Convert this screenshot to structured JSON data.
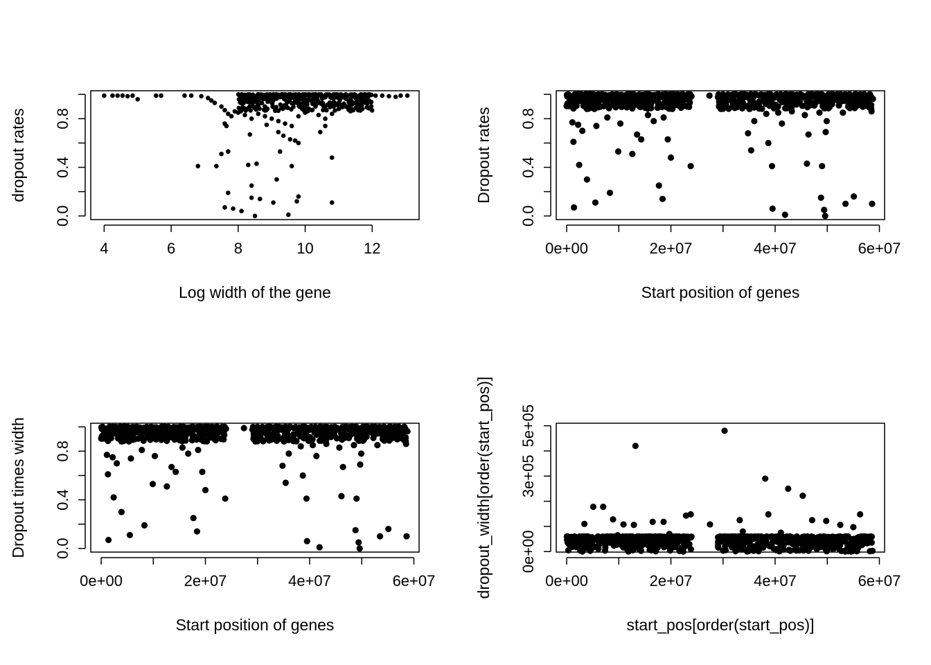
{
  "chart_data": [
    {
      "id": "p1",
      "type": "scatter",
      "title": "",
      "xlabel": "Log width of the gene",
      "ylabel": "dropout rates",
      "xlim": [
        3.6,
        13.4
      ],
      "ylim": [
        -0.03,
        1.03
      ],
      "xticks": [
        4,
        6,
        8,
        10,
        12
      ],
      "xtick_labels": [
        "4",
        "6",
        "8",
        "10",
        "12"
      ],
      "yticks": [
        0,
        0.2,
        0.4,
        0.6,
        0.8,
        1.0
      ],
      "ytick_labels": [
        "0.0",
        "",
        "0.4",
        "",
        "0.8",
        ""
      ],
      "grid": false,
      "legend": "none",
      "points": [
        [
          4.0,
          0.99
        ],
        [
          4.25,
          0.99
        ],
        [
          4.4,
          0.99
        ],
        [
          4.55,
          0.99
        ],
        [
          4.7,
          0.985
        ],
        [
          4.85,
          0.99
        ],
        [
          5.0,
          0.96
        ],
        [
          5.55,
          0.99
        ],
        [
          5.7,
          0.99
        ],
        [
          6.4,
          0.99
        ],
        [
          6.6,
          0.99
        ],
        [
          6.9,
          0.985
        ],
        [
          7.1,
          0.97
        ],
        [
          7.2,
          0.95
        ],
        [
          7.3,
          0.93
        ],
        [
          7.5,
          0.9
        ],
        [
          7.6,
          0.87
        ],
        [
          7.7,
          0.84
        ],
        [
          7.8,
          0.82
        ],
        [
          7.9,
          0.86
        ],
        [
          8.0,
          0.85
        ],
        [
          8.2,
          0.83
        ],
        [
          8.4,
          0.8
        ],
        [
          8.6,
          0.84
        ],
        [
          8.8,
          0.82
        ],
        [
          9.0,
          0.8
        ],
        [
          9.2,
          0.78
        ],
        [
          9.4,
          0.76
        ],
        [
          9.6,
          0.74
        ],
        [
          9.8,
          0.82
        ],
        [
          10.0,
          0.85
        ],
        [
          10.2,
          0.87
        ],
        [
          10.4,
          0.83
        ],
        [
          10.6,
          0.8
        ],
        [
          10.8,
          0.84
        ],
        [
          11.0,
          0.88
        ],
        [
          11.3,
          0.9
        ],
        [
          11.6,
          0.92
        ],
        [
          11.9,
          0.95
        ],
        [
          12.1,
          0.99
        ],
        [
          12.3,
          0.99
        ],
        [
          12.5,
          0.985
        ],
        [
          12.7,
          0.98
        ],
        [
          12.85,
          0.99
        ],
        [
          13.05,
          0.99
        ],
        [
          7.6,
          0.76
        ],
        [
          7.65,
          0.74
        ],
        [
          8.35,
          0.67
        ],
        [
          8.85,
          0.75
        ],
        [
          9.2,
          0.69
        ],
        [
          9.35,
          0.66
        ],
        [
          9.55,
          0.63
        ],
        [
          9.7,
          0.62
        ],
        [
          9.8,
          0.6
        ],
        [
          10.45,
          0.69
        ],
        [
          10.6,
          0.74
        ],
        [
          7.5,
          0.51
        ],
        [
          7.7,
          0.53
        ],
        [
          6.8,
          0.41
        ],
        [
          7.35,
          0.41
        ],
        [
          8.3,
          0.42
        ],
        [
          8.55,
          0.43
        ],
        [
          9.25,
          0.53
        ],
        [
          9.6,
          0.41
        ],
        [
          10.8,
          0.48
        ],
        [
          9.15,
          0.3
        ],
        [
          7.7,
          0.19
        ],
        [
          8.4,
          0.25
        ],
        [
          8.4,
          0.15
        ],
        [
          8.65,
          0.14
        ],
        [
          9.05,
          0.11
        ],
        [
          9.75,
          0.12
        ],
        [
          9.8,
          0.16
        ],
        [
          10.8,
          0.11
        ],
        [
          7.6,
          0.07
        ],
        [
          7.85,
          0.06
        ],
        [
          8.1,
          0.04
        ],
        [
          8.5,
          0.0
        ],
        [
          9.5,
          0.01
        ]
      ],
      "dense_band": {
        "x_range": [
          8.0,
          12.0
        ],
        "y_range": [
          0.86,
          1.0
        ]
      },
      "marker_r": 3.3
    },
    {
      "id": "p2",
      "type": "scatter",
      "title": "",
      "xlabel": "Start position of genes",
      "ylabel": "Dropout rates",
      "xlim": [
        -2000000,
        61000000
      ],
      "ylim": [
        -0.03,
        1.03
      ],
      "xticks": [
        0,
        10000000,
        20000000,
        30000000,
        40000000,
        50000000,
        60000000
      ],
      "xtick_labels": [
        "0e+00",
        "",
        "2e+07",
        "",
        "4e+07",
        "",
        "6e+07"
      ],
      "yticks": [
        0,
        0.2,
        0.4,
        0.6,
        0.8,
        1.0
      ],
      "ytick_labels": [
        "0.0",
        "",
        "0.4",
        "",
        "0.8",
        ""
      ],
      "grid": false,
      "legend": "none",
      "points": [
        [
          1100000,
          0.77
        ],
        [
          1300000,
          0.61
        ],
        [
          1400000,
          0.07
        ],
        [
          2200000,
          0.75
        ],
        [
          2400000,
          0.42
        ],
        [
          3000000,
          0.7
        ],
        [
          3900000,
          0.3
        ],
        [
          5500000,
          0.11
        ],
        [
          5700000,
          0.74
        ],
        [
          7800000,
          0.81
        ],
        [
          8300000,
          0.19
        ],
        [
          9900000,
          0.53
        ],
        [
          10300000,
          0.76
        ],
        [
          12600000,
          0.51
        ],
        [
          13500000,
          0.67
        ],
        [
          14300000,
          0.63
        ],
        [
          15600000,
          0.83
        ],
        [
          16700000,
          0.78
        ],
        [
          17700000,
          0.25
        ],
        [
          18400000,
          0.14
        ],
        [
          18600000,
          0.81
        ],
        [
          19400000,
          0.63
        ],
        [
          20000000,
          0.48
        ],
        [
          23800000,
          0.41
        ],
        [
          27400000,
          0.99
        ],
        [
          29300000,
          0.94
        ],
        [
          29600000,
          0.88
        ],
        [
          34800000,
          0.68
        ],
        [
          35100000,
          0.88
        ],
        [
          35400000,
          0.54
        ],
        [
          36000000,
          0.78
        ],
        [
          38300000,
          0.84
        ],
        [
          38700000,
          0.6
        ],
        [
          39400000,
          0.41
        ],
        [
          39500000,
          0.06
        ],
        [
          40600000,
          0.85
        ],
        [
          41300000,
          0.76
        ],
        [
          41900000,
          0.01
        ],
        [
          43200000,
          0.86
        ],
        [
          45700000,
          0.83
        ],
        [
          46100000,
          0.43
        ],
        [
          46400000,
          0.67
        ],
        [
          48500000,
          0.85
        ],
        [
          48800000,
          0.15
        ],
        [
          49000000,
          0.41
        ],
        [
          49400000,
          0.05
        ],
        [
          49600000,
          0.0
        ],
        [
          49700000,
          0.69
        ],
        [
          49900000,
          0.78
        ],
        [
          53000000,
          0.85
        ],
        [
          53500000,
          0.1
        ],
        [
          55100000,
          0.16
        ],
        [
          57100000,
          0.92
        ],
        [
          58500000,
          0.86
        ],
        [
          58600000,
          0.1
        ]
      ],
      "dense_band": {
        "x_ranges": [
          [
            0,
            24000000
          ],
          [
            29000000,
            58800000
          ]
        ],
        "y_range": [
          0.88,
          1.0
        ]
      },
      "marker_r": 4.6
    },
    {
      "id": "p3",
      "type": "scatter",
      "title": "",
      "xlabel": "Start position of genes",
      "ylabel": "Dropout times width",
      "xlim": [
        -2000000,
        61000000
      ],
      "ylim": [
        -0.03,
        1.03
      ],
      "xticks": [
        0,
        10000000,
        20000000,
        30000000,
        40000000,
        50000000,
        60000000
      ],
      "xtick_labels": [
        "0e+00",
        "",
        "2e+07",
        "",
        "4e+07",
        "",
        "6e+07"
      ],
      "yticks": [
        0,
        0.2,
        0.4,
        0.6,
        0.8,
        1.0
      ],
      "ytick_labels": [
        "0.0",
        "",
        "0.4",
        "",
        "0.8",
        ""
      ],
      "grid": false,
      "legend": "none",
      "same_points_as": "p2",
      "marker_r": 4.6
    },
    {
      "id": "p4",
      "type": "scatter",
      "title": "",
      "xlabel": "start_pos[order(start_pos)]",
      "ylabel": "dropout_width[order(start_pos)]",
      "xlim": [
        -2000000,
        61000000
      ],
      "ylim": [
        -2000,
        510000
      ],
      "xticks": [
        0,
        10000000,
        20000000,
        30000000,
        40000000,
        50000000,
        60000000
      ],
      "xtick_labels": [
        "0e+00",
        "",
        "2e+07",
        "",
        "4e+07",
        "",
        "6e+07"
      ],
      "yticks": [
        0,
        100000,
        200000,
        300000,
        400000,
        500000
      ],
      "ytick_labels": [
        "0e+00",
        "",
        "",
        "3e+05",
        "",
        "5e+05"
      ],
      "grid": false,
      "legend": "none",
      "points": [
        [
          13200000,
          420000
        ],
        [
          30300000,
          480000
        ],
        [
          38100000,
          290000
        ],
        [
          42500000,
          250000
        ],
        [
          45300000,
          222000
        ],
        [
          56300000,
          148000
        ],
        [
          5100000,
          178000
        ],
        [
          7000000,
          178000
        ],
        [
          3400000,
          110000
        ],
        [
          8900000,
          128000
        ],
        [
          10900000,
          108000
        ],
        [
          12900000,
          106000
        ],
        [
          16500000,
          118000
        ],
        [
          18600000,
          118000
        ],
        [
          22900000,
          143000
        ],
        [
          23800000,
          148000
        ],
        [
          27500000,
          108000
        ],
        [
          33200000,
          125000
        ],
        [
          38700000,
          148000
        ],
        [
          47100000,
          125000
        ],
        [
          49800000,
          122000
        ],
        [
          52500000,
          106000
        ],
        [
          55000000,
          97000
        ],
        [
          1000000,
          45000
        ],
        [
          2500000,
          60000
        ],
        [
          4300000,
          30000
        ],
        [
          6100000,
          55000
        ],
        [
          7700000,
          40000
        ],
        [
          9800000,
          65000
        ],
        [
          11600000,
          50000
        ],
        [
          14400000,
          30000
        ],
        [
          15900000,
          60000
        ],
        [
          17800000,
          40000
        ],
        [
          19700000,
          70000
        ],
        [
          21200000,
          45000
        ],
        [
          22500000,
          35000
        ],
        [
          29600000,
          40000
        ],
        [
          31500000,
          50000
        ],
        [
          33800000,
          80000
        ],
        [
          35100000,
          35000
        ],
        [
          36800000,
          60000
        ],
        [
          39600000,
          50000
        ],
        [
          41100000,
          75000
        ],
        [
          43400000,
          30000
        ],
        [
          46200000,
          60000
        ],
        [
          48300000,
          45000
        ],
        [
          51000000,
          50000
        ],
        [
          53400000,
          40000
        ],
        [
          55800000,
          55000
        ],
        [
          57900000,
          35000
        ]
      ],
      "dense_band": {
        "x_ranges": [
          [
            0,
            24000000
          ],
          [
            29000000,
            58800000
          ]
        ],
        "y_range": [
          0,
          60000
        ]
      },
      "marker_r": 4.6
    }
  ]
}
